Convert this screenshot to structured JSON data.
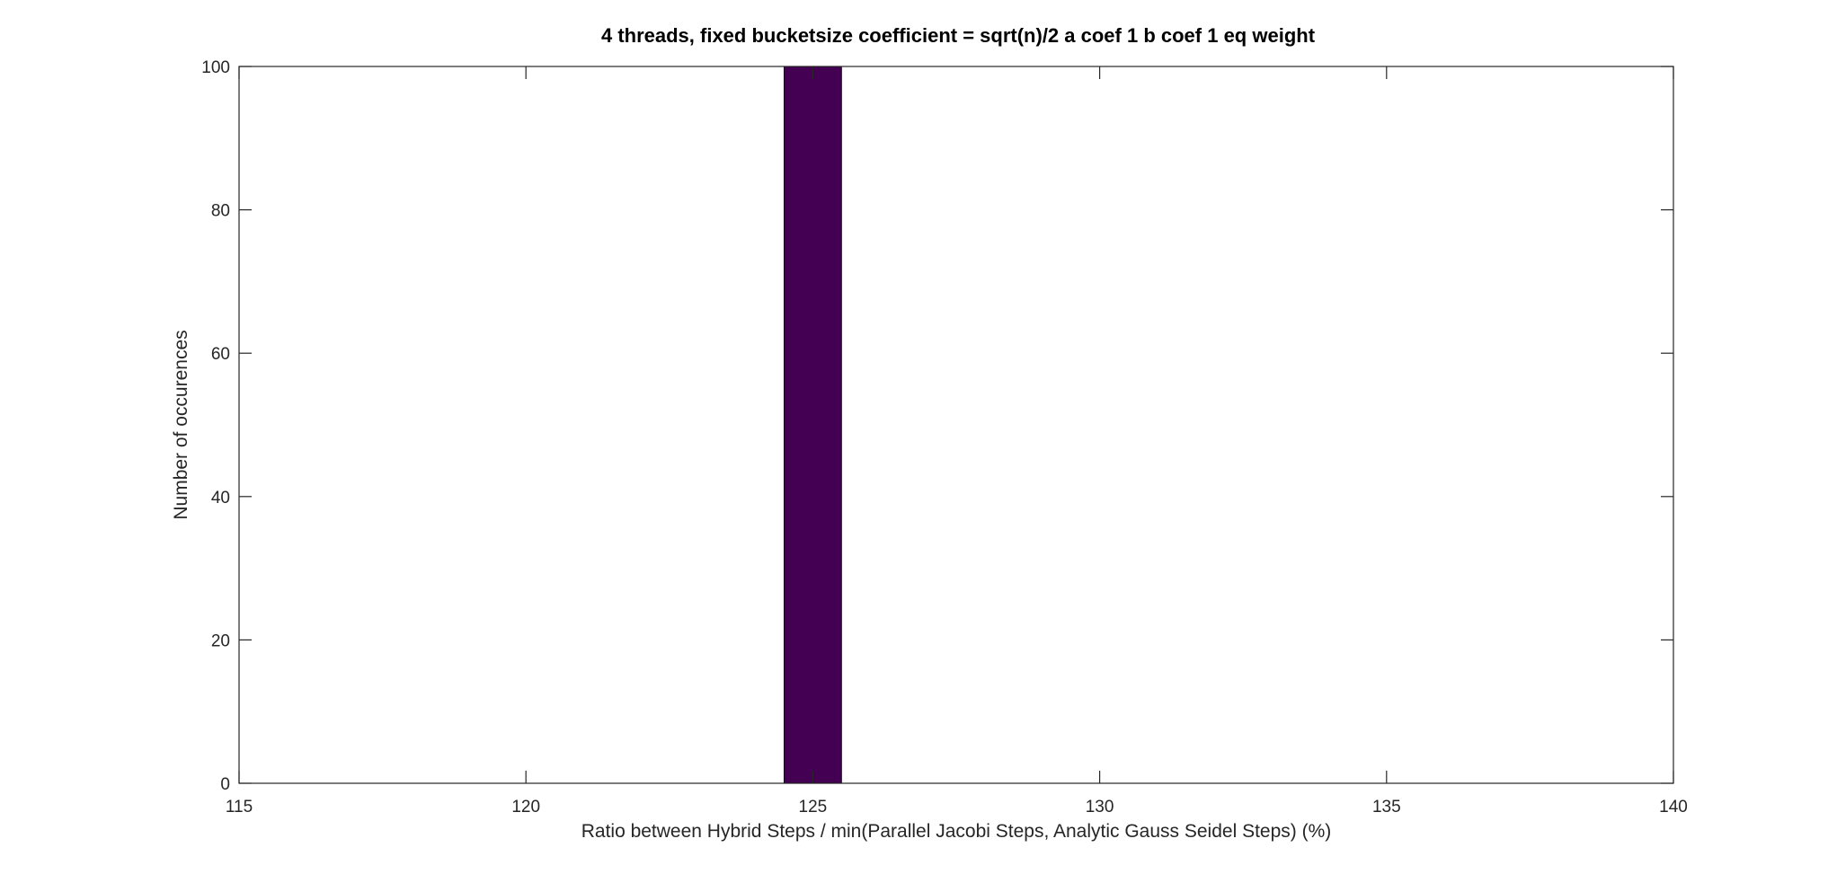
{
  "chart_data": {
    "type": "bar",
    "title": "4 threads, fixed bucketsize coefficient = sqrt(n)/2 a coef 1 b coef 1 eq weight",
    "xlabel": "Ratio between Hybrid Steps / min(Parallel Jacobi Steps, Analytic Gauss Seidel Steps) (%)",
    "ylabel": "Number of occurences",
    "xlim": [
      115,
      140
    ],
    "ylim": [
      0,
      100
    ],
    "x_ticks": [
      115,
      120,
      125,
      130,
      135,
      140
    ],
    "y_ticks": [
      0,
      20,
      40,
      60,
      80,
      100
    ],
    "bars": [
      {
        "x_start": 124.5,
        "x_end": 125.5,
        "value": 100
      }
    ],
    "bar_color": "#440154",
    "grid": false,
    "legend": "none"
  }
}
